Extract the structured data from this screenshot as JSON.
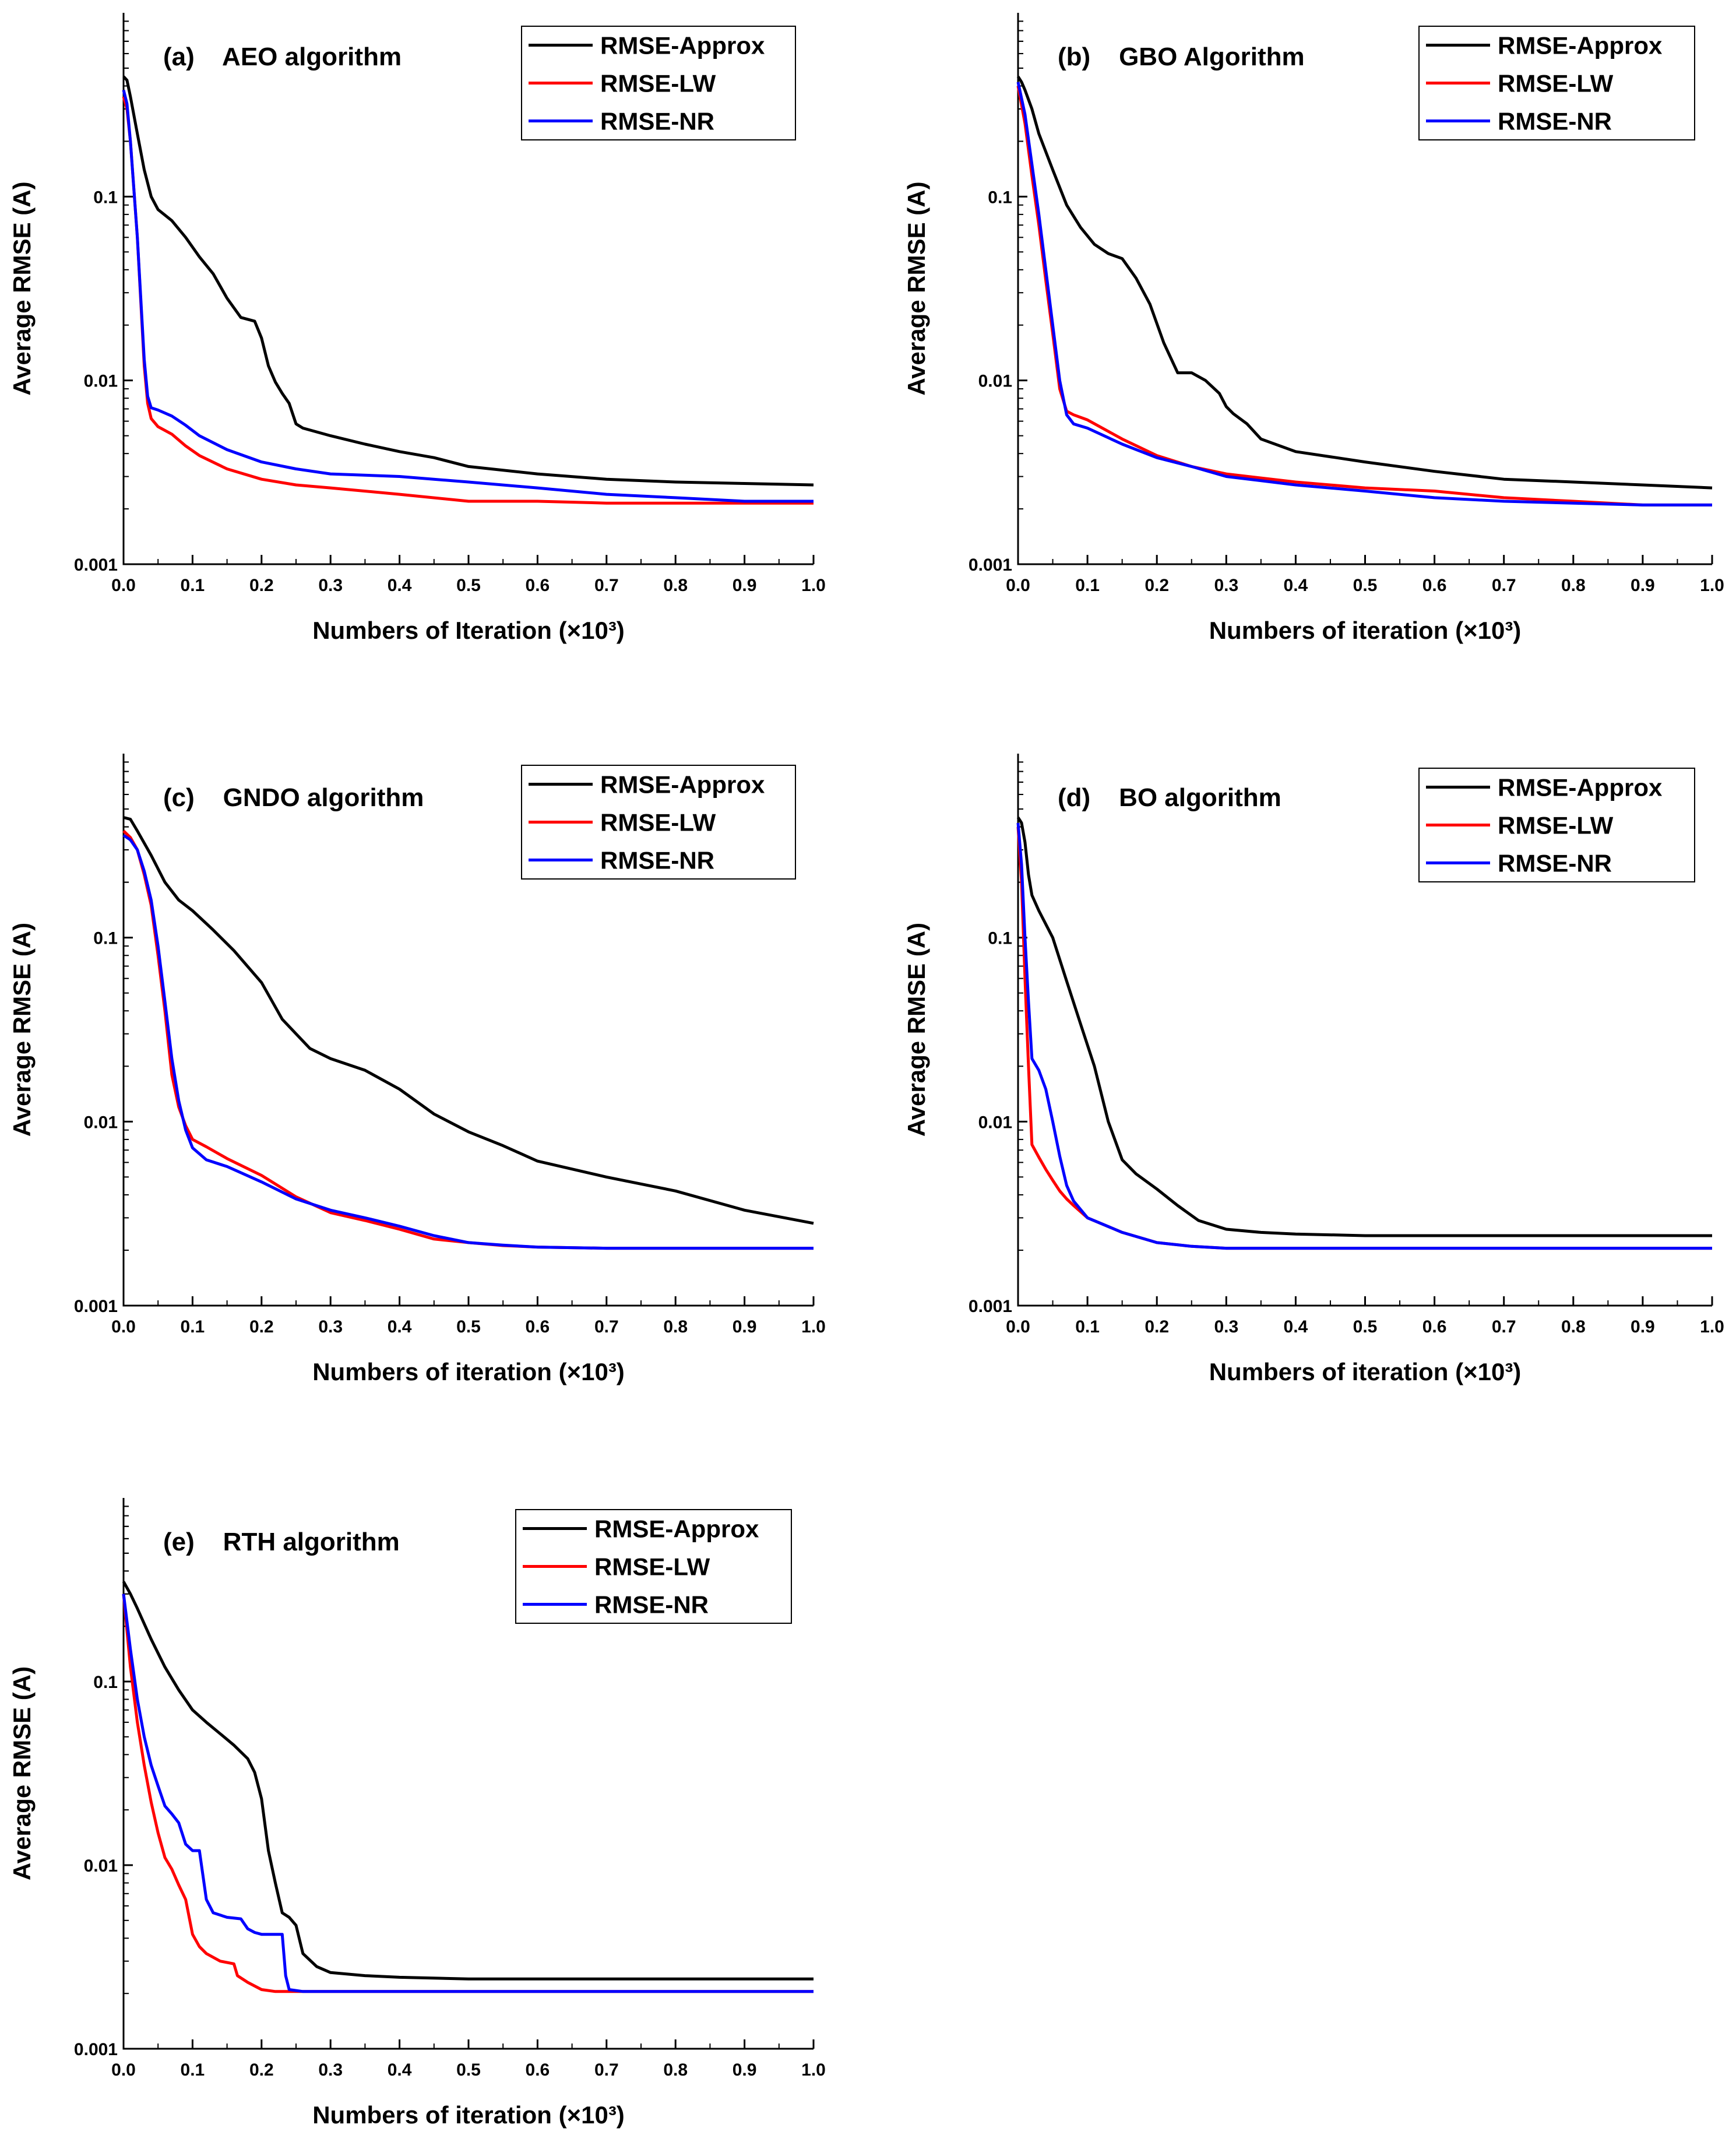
{
  "chart_data": [
    {
      "type": "line",
      "title": "(a)    AEO algorithm",
      "xlabel": "Numbers of Iteration (×10³)",
      "ylabel": "Average RMSE (A)",
      "xlim": [
        0,
        1.0
      ],
      "ylim": [
        0.001,
        1.0
      ],
      "yscale": "log",
      "x_ticks": [
        "0.0",
        "0.1",
        "0.2",
        "0.3",
        "0.4",
        "0.5",
        "0.6",
        "0.7",
        "0.8",
        "0.9",
        "1.0"
      ],
      "y_ticks": [
        "0.001",
        "0.01",
        "0.1"
      ],
      "legend_position": "top-right",
      "series": [
        {
          "name": "RMSE-Approx",
          "color": "#000000",
          "x": [
            0,
            0.005,
            0.01,
            0.02,
            0.03,
            0.04,
            0.05,
            0.07,
            0.09,
            0.11,
            0.13,
            0.15,
            0.17,
            0.19,
            0.2,
            0.21,
            0.22,
            0.23,
            0.24,
            0.25,
            0.26,
            0.3,
            0.35,
            0.4,
            0.45,
            0.5,
            0.6,
            0.7,
            0.8,
            0.9,
            1.0
          ],
          "y": [
            0.45,
            0.43,
            0.35,
            0.22,
            0.14,
            0.1,
            0.085,
            0.074,
            0.06,
            0.047,
            0.038,
            0.028,
            0.022,
            0.021,
            0.017,
            0.012,
            0.0098,
            0.0085,
            0.0075,
            0.0058,
            0.0055,
            0.005,
            0.0045,
            0.0041,
            0.0038,
            0.0034,
            0.0031,
            0.0029,
            0.0028,
            0.00275,
            0.0027
          ]
        },
        {
          "name": "RMSE-LW",
          "color": "#ff0000",
          "x": [
            0,
            0.005,
            0.01,
            0.02,
            0.03,
            0.035,
            0.04,
            0.05,
            0.07,
            0.09,
            0.11,
            0.15,
            0.2,
            0.25,
            0.3,
            0.4,
            0.5,
            0.6,
            0.7,
            0.8,
            0.9,
            1.0
          ],
          "y": [
            0.35,
            0.3,
            0.2,
            0.06,
            0.012,
            0.0075,
            0.0062,
            0.0056,
            0.0051,
            0.0044,
            0.0039,
            0.0033,
            0.0029,
            0.0027,
            0.0026,
            0.0024,
            0.0022,
            0.0022,
            0.00215,
            0.00215,
            0.00215,
            0.00215
          ]
        },
        {
          "name": "RMSE-NR",
          "color": "#0000ff",
          "x": [
            0,
            0.005,
            0.01,
            0.02,
            0.03,
            0.035,
            0.04,
            0.05,
            0.07,
            0.09,
            0.11,
            0.15,
            0.2,
            0.25,
            0.3,
            0.4,
            0.5,
            0.6,
            0.7,
            0.8,
            0.9,
            1.0
          ],
          "y": [
            0.38,
            0.32,
            0.2,
            0.06,
            0.013,
            0.0082,
            0.0071,
            0.0069,
            0.0064,
            0.0057,
            0.005,
            0.0042,
            0.0036,
            0.0033,
            0.0031,
            0.003,
            0.0028,
            0.0026,
            0.0024,
            0.0023,
            0.0022,
            0.0022
          ]
        }
      ]
    },
    {
      "type": "line",
      "title": "(b)    GBO Algorithm",
      "xlabel": "Numbers of iteration (×10³)",
      "ylabel": "Average RMSE (A)",
      "xlim": [
        0,
        1.0
      ],
      "ylim": [
        0.001,
        1.0
      ],
      "yscale": "log",
      "x_ticks": [
        "0.0",
        "0.1",
        "0.2",
        "0.3",
        "0.4",
        "0.5",
        "0.6",
        "0.7",
        "0.8",
        "0.9",
        "1.0"
      ],
      "y_ticks": [
        "0.001",
        "0.01",
        "0.1"
      ],
      "legend_position": "top-right",
      "series": [
        {
          "name": "RMSE-Approx",
          "color": "#000000",
          "x": [
            0,
            0.005,
            0.01,
            0.02,
            0.03,
            0.05,
            0.07,
            0.09,
            0.11,
            0.13,
            0.15,
            0.17,
            0.19,
            0.21,
            0.23,
            0.25,
            0.27,
            0.29,
            0.3,
            0.31,
            0.33,
            0.35,
            0.4,
            0.5,
            0.6,
            0.7,
            0.8,
            0.9,
            1.0
          ],
          "y": [
            0.45,
            0.42,
            0.38,
            0.3,
            0.22,
            0.14,
            0.09,
            0.068,
            0.055,
            0.049,
            0.046,
            0.036,
            0.026,
            0.016,
            0.011,
            0.011,
            0.01,
            0.0085,
            0.0072,
            0.0066,
            0.0058,
            0.0048,
            0.0041,
            0.0036,
            0.0032,
            0.0029,
            0.0028,
            0.0027,
            0.0026
          ]
        },
        {
          "name": "RMSE-LW",
          "color": "#ff0000",
          "x": [
            0,
            0.01,
            0.02,
            0.03,
            0.04,
            0.05,
            0.06,
            0.07,
            0.08,
            0.1,
            0.15,
            0.2,
            0.25,
            0.3,
            0.4,
            0.5,
            0.6,
            0.7,
            0.8,
            0.9,
            1.0
          ],
          "y": [
            0.4,
            0.25,
            0.13,
            0.07,
            0.035,
            0.018,
            0.009,
            0.0068,
            0.0065,
            0.0061,
            0.0048,
            0.0039,
            0.0034,
            0.0031,
            0.0028,
            0.0026,
            0.0025,
            0.0023,
            0.0022,
            0.0021,
            0.0021
          ]
        },
        {
          "name": "RMSE-NR",
          "color": "#0000ff",
          "x": [
            0,
            0.01,
            0.02,
            0.03,
            0.04,
            0.05,
            0.06,
            0.07,
            0.08,
            0.1,
            0.15,
            0.2,
            0.25,
            0.3,
            0.4,
            0.5,
            0.6,
            0.7,
            0.8,
            0.9,
            1.0
          ],
          "y": [
            0.42,
            0.28,
            0.15,
            0.08,
            0.04,
            0.02,
            0.01,
            0.0065,
            0.0058,
            0.0055,
            0.0045,
            0.0038,
            0.0034,
            0.003,
            0.0027,
            0.0025,
            0.0023,
            0.0022,
            0.00215,
            0.0021,
            0.0021
          ]
        }
      ]
    },
    {
      "type": "line",
      "title": "(c)    GNDO algorithm",
      "xlabel": "Numbers of iteration (×10³)",
      "ylabel": "Average RMSE (A)",
      "xlim": [
        0,
        1.0
      ],
      "ylim": [
        0.001,
        1.0
      ],
      "yscale": "log",
      "x_ticks": [
        "0.0",
        "0.1",
        "0.2",
        "0.3",
        "0.4",
        "0.5",
        "0.6",
        "0.7",
        "0.8",
        "0.9",
        "1.0"
      ],
      "y_ticks": [
        "0.001",
        "0.01",
        "0.1"
      ],
      "legend_position": "top-right",
      "series": [
        {
          "name": "RMSE-Approx",
          "color": "#000000",
          "x": [
            0,
            0.01,
            0.02,
            0.04,
            0.06,
            0.08,
            0.1,
            0.13,
            0.16,
            0.2,
            0.23,
            0.27,
            0.3,
            0.35,
            0.4,
            0.45,
            0.5,
            0.55,
            0.6,
            0.7,
            0.8,
            0.9,
            1.0
          ],
          "y": [
            0.45,
            0.44,
            0.38,
            0.28,
            0.2,
            0.16,
            0.14,
            0.11,
            0.085,
            0.057,
            0.036,
            0.025,
            0.022,
            0.019,
            0.015,
            0.011,
            0.0088,
            0.0074,
            0.0061,
            0.005,
            0.0042,
            0.0033,
            0.0028
          ]
        },
        {
          "name": "RMSE-LW",
          "color": "#ff0000",
          "x": [
            0,
            0.01,
            0.02,
            0.03,
            0.04,
            0.05,
            0.06,
            0.07,
            0.08,
            0.09,
            0.1,
            0.12,
            0.15,
            0.2,
            0.25,
            0.3,
            0.35,
            0.4,
            0.45,
            0.5,
            0.55,
            0.6,
            0.7,
            0.8,
            0.9,
            1.0
          ],
          "y": [
            0.38,
            0.35,
            0.3,
            0.22,
            0.15,
            0.08,
            0.04,
            0.018,
            0.012,
            0.0095,
            0.008,
            0.0073,
            0.0063,
            0.0051,
            0.0039,
            0.0032,
            0.0029,
            0.0026,
            0.0023,
            0.0022,
            0.00212,
            0.00208,
            0.00205,
            0.00205,
            0.00205,
            0.00205
          ]
        },
        {
          "name": "RMSE-NR",
          "color": "#0000ff",
          "x": [
            0,
            0.01,
            0.02,
            0.03,
            0.04,
            0.05,
            0.06,
            0.07,
            0.08,
            0.09,
            0.1,
            0.12,
            0.15,
            0.2,
            0.25,
            0.3,
            0.35,
            0.4,
            0.45,
            0.5,
            0.55,
            0.6,
            0.7,
            0.8,
            0.9,
            1.0
          ],
          "y": [
            0.36,
            0.34,
            0.3,
            0.23,
            0.16,
            0.09,
            0.045,
            0.022,
            0.013,
            0.009,
            0.0072,
            0.0062,
            0.0057,
            0.0047,
            0.0038,
            0.0033,
            0.003,
            0.0027,
            0.0024,
            0.0022,
            0.00213,
            0.00208,
            0.00205,
            0.00205,
            0.00205,
            0.00205
          ]
        }
      ]
    },
    {
      "type": "line",
      "title": "(d)    BO algorithm",
      "xlabel": "Numbers of iteration (×10³)",
      "ylabel": "Average RMSE (A)",
      "xlim": [
        0,
        1.0
      ],
      "ylim": [
        0.001,
        1.0
      ],
      "yscale": "log",
      "x_ticks": [
        "0.0",
        "0.1",
        "0.2",
        "0.3",
        "0.4",
        "0.5",
        "0.6",
        "0.7",
        "0.8",
        "0.9",
        "1.0"
      ],
      "y_ticks": [
        "0.001",
        "0.01",
        "0.1"
      ],
      "legend_position": "top-right",
      "series": [
        {
          "name": "RMSE-Approx",
          "color": "#000000",
          "x": [
            0,
            0.005,
            0.01,
            0.015,
            0.02,
            0.03,
            0.05,
            0.07,
            0.09,
            0.11,
            0.13,
            0.15,
            0.17,
            0.2,
            0.23,
            0.26,
            0.3,
            0.35,
            0.4,
            0.5,
            0.6,
            0.8,
            1.0
          ],
          "y": [
            0.45,
            0.42,
            0.33,
            0.22,
            0.17,
            0.14,
            0.1,
            0.058,
            0.034,
            0.02,
            0.01,
            0.0062,
            0.0052,
            0.0043,
            0.0035,
            0.0029,
            0.0026,
            0.0025,
            0.00245,
            0.0024,
            0.0024,
            0.0024,
            0.0024
          ]
        },
        {
          "name": "RMSE-LW",
          "color": "#ff0000",
          "x": [
            0,
            0.005,
            0.01,
            0.015,
            0.02,
            0.03,
            0.04,
            0.05,
            0.06,
            0.07,
            0.08,
            0.1,
            0.15,
            0.2,
            0.25,
            0.3,
            0.4,
            0.5,
            0.7,
            1.0
          ],
          "y": [
            0.4,
            0.2,
            0.06,
            0.02,
            0.0075,
            0.0064,
            0.0055,
            0.0048,
            0.0042,
            0.0038,
            0.0035,
            0.003,
            0.0025,
            0.0022,
            0.0021,
            0.00205,
            0.00205,
            0.00205,
            0.00205,
            0.00205
          ]
        },
        {
          "name": "RMSE-NR",
          "color": "#0000ff",
          "x": [
            0,
            0.005,
            0.01,
            0.015,
            0.02,
            0.03,
            0.04,
            0.05,
            0.06,
            0.07,
            0.08,
            0.1,
            0.15,
            0.2,
            0.25,
            0.3,
            0.4,
            0.5,
            0.7,
            1.0
          ],
          "y": [
            0.42,
            0.25,
            0.1,
            0.045,
            0.022,
            0.019,
            0.015,
            0.01,
            0.0065,
            0.0045,
            0.0037,
            0.003,
            0.0025,
            0.0022,
            0.0021,
            0.00205,
            0.00205,
            0.00205,
            0.00205,
            0.00205
          ]
        }
      ]
    },
    {
      "type": "line",
      "title": "(e)    RTH algorithm",
      "xlabel": "Numbers of iteration (×10³)",
      "ylabel": "Average RMSE (A)",
      "xlim": [
        0,
        1.0
      ],
      "ylim": [
        0.001,
        1.0
      ],
      "yscale": "log",
      "x_ticks": [
        "0.0",
        "0.1",
        "0.2",
        "0.3",
        "0.4",
        "0.5",
        "0.6",
        "0.7",
        "0.8",
        "0.9",
        "1.0"
      ],
      "y_ticks": [
        "0.001",
        "0.01",
        "0.1"
      ],
      "legend_position": "top-right",
      "series": [
        {
          "name": "RMSE-Approx",
          "color": "#000000",
          "x": [
            0,
            0.01,
            0.02,
            0.04,
            0.06,
            0.08,
            0.1,
            0.12,
            0.14,
            0.16,
            0.18,
            0.19,
            0.2,
            0.21,
            0.22,
            0.23,
            0.24,
            0.25,
            0.26,
            0.28,
            0.3,
            0.35,
            0.4,
            0.5,
            0.7,
            1.0
          ],
          "y": [
            0.35,
            0.3,
            0.25,
            0.17,
            0.12,
            0.09,
            0.07,
            0.06,
            0.052,
            0.045,
            0.038,
            0.032,
            0.023,
            0.012,
            0.008,
            0.0055,
            0.0052,
            0.0047,
            0.0033,
            0.0028,
            0.0026,
            0.0025,
            0.00245,
            0.0024,
            0.0024,
            0.0024
          ]
        },
        {
          "name": "RMSE-LW",
          "color": "#ff0000",
          "x": [
            0,
            0.01,
            0.02,
            0.03,
            0.04,
            0.05,
            0.06,
            0.07,
            0.08,
            0.09,
            0.1,
            0.11,
            0.12,
            0.14,
            0.16,
            0.165,
            0.18,
            0.2,
            0.22,
            0.24,
            0.3,
            0.4,
            0.6,
            1.0
          ],
          "y": [
            0.3,
            0.12,
            0.06,
            0.035,
            0.022,
            0.015,
            0.011,
            0.0095,
            0.0078,
            0.0065,
            0.0042,
            0.0036,
            0.0033,
            0.003,
            0.0029,
            0.0025,
            0.0023,
            0.0021,
            0.00205,
            0.00205,
            0.00205,
            0.00205,
            0.00205,
            0.00205
          ]
        },
        {
          "name": "RMSE-NR",
          "color": "#0000ff",
          "x": [
            0,
            0.01,
            0.02,
            0.03,
            0.04,
            0.05,
            0.06,
            0.07,
            0.08,
            0.09,
            0.1,
            0.11,
            0.12,
            0.13,
            0.15,
            0.17,
            0.18,
            0.19,
            0.2,
            0.23,
            0.235,
            0.24,
            0.26,
            0.3,
            0.4,
            0.6,
            1.0
          ],
          "y": [
            0.3,
            0.15,
            0.08,
            0.05,
            0.035,
            0.027,
            0.021,
            0.019,
            0.017,
            0.013,
            0.012,
            0.012,
            0.0065,
            0.0055,
            0.0052,
            0.0051,
            0.0045,
            0.0043,
            0.0042,
            0.0042,
            0.0025,
            0.0021,
            0.00205,
            0.00205,
            0.00205,
            0.00205,
            0.00205
          ]
        }
      ]
    }
  ]
}
